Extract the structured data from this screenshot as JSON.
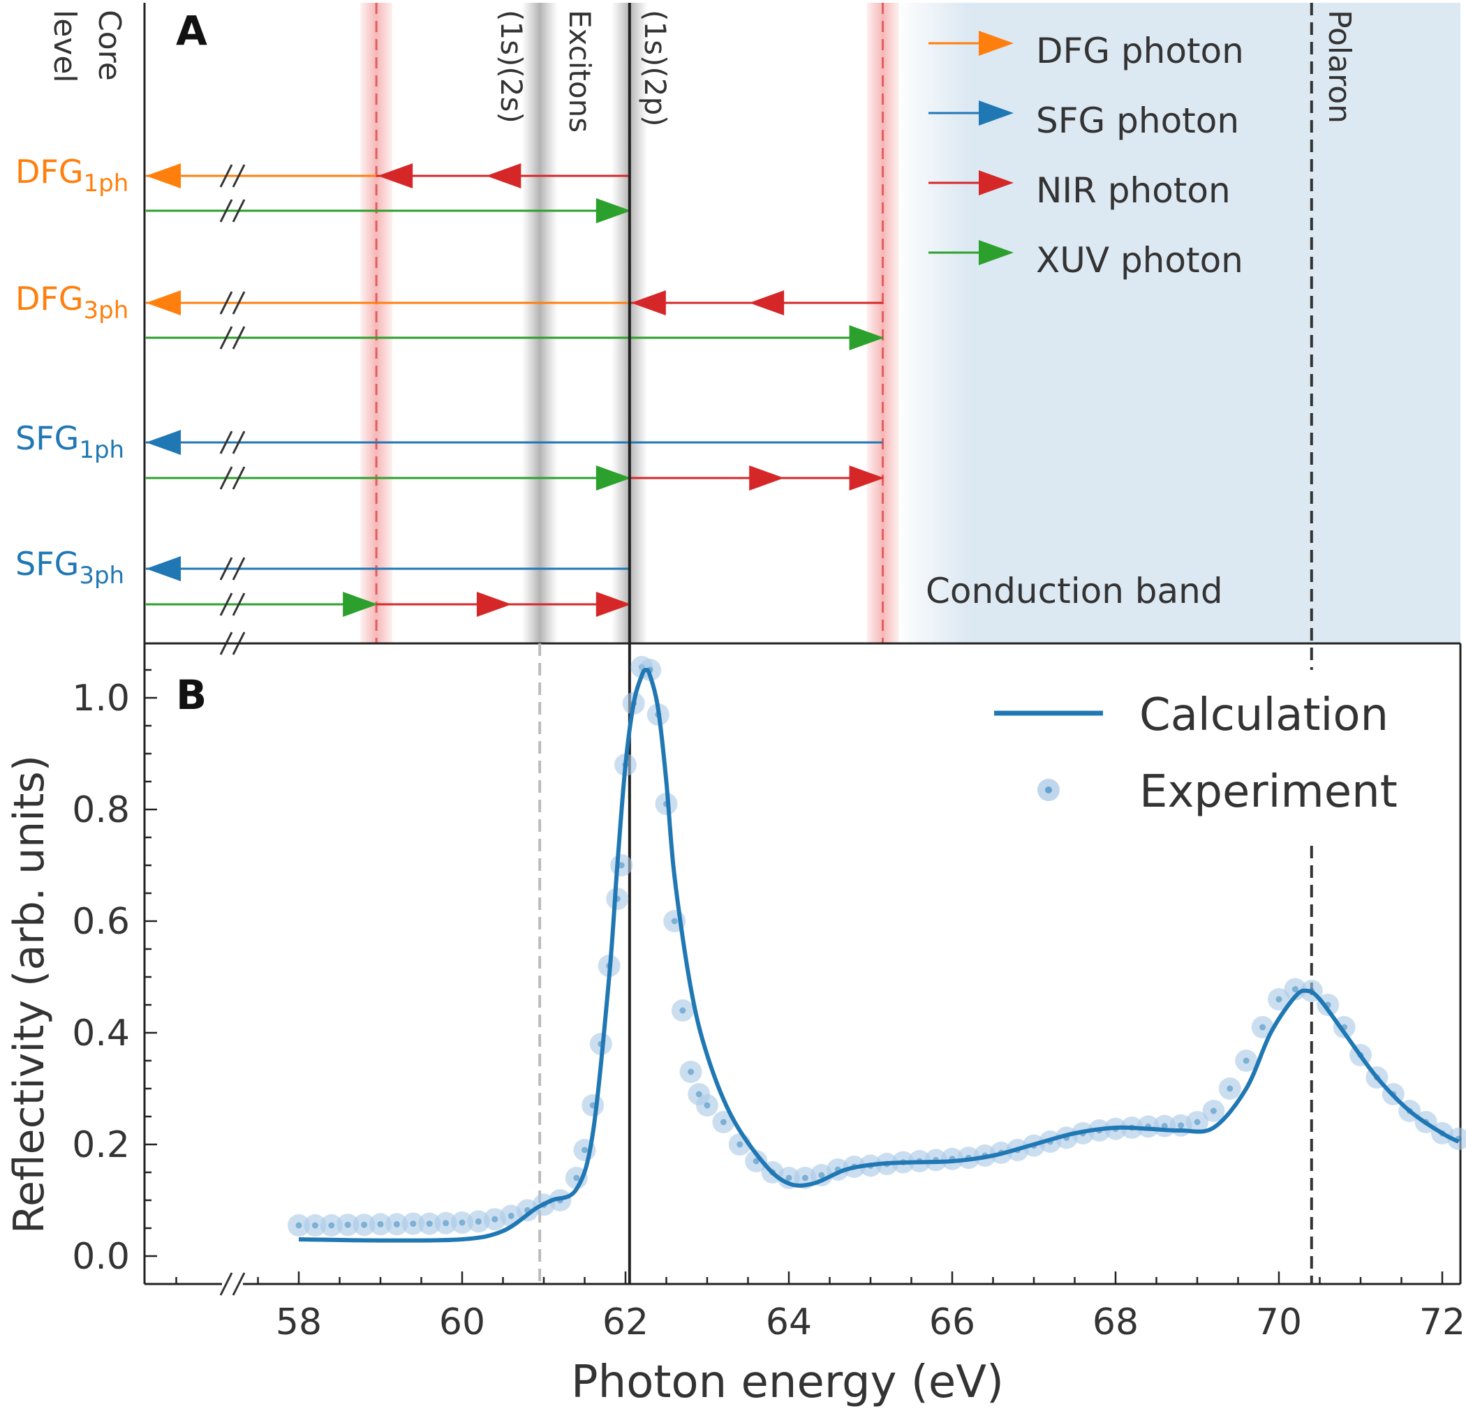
{
  "colors": {
    "orange": "#ff7f0e",
    "blue": "#1f77b4",
    "red": "#d62728",
    "green": "#2ca02c",
    "conduction_band": "#dce8f2",
    "axis": "#222222",
    "exp_marker": "#a9c8e6"
  },
  "panel_a": {
    "label": "A",
    "core_level_line1": "Core",
    "core_level_line2": "level",
    "exciton_1s2s": "(1s)(2s)",
    "exciton_title": "Excitons",
    "exciton_1s2p": "(1s)(2p)",
    "polaron_label": "Polaron",
    "conduction_band_label": "Conduction band",
    "rows": [
      {
        "name": "DFG",
        "sub": "1ph",
        "color": "orange"
      },
      {
        "name": "DFG",
        "sub": "3ph",
        "color": "orange"
      },
      {
        "name": "SFG",
        "sub": "1ph",
        "color": "blue"
      },
      {
        "name": "SFG",
        "sub": "3ph",
        "color": "blue"
      }
    ],
    "legend": [
      {
        "label": "DFG photon",
        "color": "orange"
      },
      {
        "label": "SFG photon",
        "color": "blue"
      },
      {
        "label": "NIR photon",
        "color": "red"
      },
      {
        "label": "XUV photon",
        "color": "green"
      }
    ],
    "energies_eV": {
      "exciton_1s2s": 60.95,
      "exciton_1s2p": 62.05,
      "nir_minus": 58.95,
      "nir_plus": 65.15,
      "polaron": 70.4
    }
  },
  "panel_b": {
    "label": "B",
    "legend": {
      "calculation": "Calculation",
      "experiment": "Experiment"
    }
  },
  "chart_data": {
    "type": "line",
    "title": "",
    "xlabel": "Photon energy (eV)",
    "ylabel": "Reflectivity (arb. units)",
    "xlim": [
      56.1,
      72.2
    ],
    "ylim": [
      -0.05,
      1.1
    ],
    "x_break": 57.1,
    "xticks": [
      58,
      60,
      62,
      64,
      66,
      68,
      70,
      72
    ],
    "xtick_labels": [
      "58",
      "60",
      "62",
      "64",
      "66",
      "68",
      "70",
      "72"
    ],
    "yticks": [
      0.0,
      0.2,
      0.4,
      0.6,
      0.8,
      1.0
    ],
    "ytick_labels": [
      "0.0",
      "0.2",
      "0.4",
      "0.6",
      "0.8",
      "1.0"
    ],
    "vlines": [
      {
        "x": 60.95,
        "style": "dashed-gray"
      },
      {
        "x": 62.05,
        "style": "solid-black"
      },
      {
        "x": 70.4,
        "style": "dashed-black"
      }
    ],
    "series": [
      {
        "name": "Calculation",
        "x": [
          58.0,
          59.0,
          60.0,
          60.5,
          60.9,
          61.1,
          61.4,
          61.6,
          61.8,
          61.9,
          62.0,
          62.1,
          62.2,
          62.25,
          62.3,
          62.4,
          62.5,
          62.6,
          62.8,
          63.0,
          63.3,
          63.7,
          64.0,
          64.3,
          64.7,
          65.1,
          65.5,
          66.0,
          66.5,
          67.0,
          67.5,
          68.0,
          68.4,
          68.8,
          69.2,
          69.6,
          69.9,
          70.2,
          70.35,
          70.5,
          70.8,
          71.2,
          71.6,
          72.0,
          72.2
        ],
        "y": [
          0.03,
          0.028,
          0.03,
          0.045,
          0.085,
          0.1,
          0.12,
          0.22,
          0.5,
          0.7,
          0.88,
          0.99,
          1.04,
          1.05,
          1.04,
          0.98,
          0.85,
          0.68,
          0.48,
          0.36,
          0.25,
          0.165,
          0.13,
          0.13,
          0.155,
          0.165,
          0.168,
          0.17,
          0.18,
          0.2,
          0.22,
          0.23,
          0.228,
          0.225,
          0.23,
          0.3,
          0.4,
          0.465,
          0.475,
          0.46,
          0.4,
          0.32,
          0.26,
          0.22,
          0.205
        ]
      },
      {
        "name": "Experiment",
        "x": [
          58.0,
          58.2,
          58.4,
          58.6,
          58.8,
          59.0,
          59.2,
          59.4,
          59.6,
          59.8,
          60.0,
          60.2,
          60.4,
          60.6,
          60.8,
          61.0,
          61.2,
          61.4,
          61.5,
          61.6,
          61.7,
          61.8,
          61.9,
          61.95,
          62.0,
          62.1,
          62.2,
          62.3,
          62.4,
          62.5,
          62.6,
          62.7,
          62.8,
          62.9,
          63.0,
          63.2,
          63.4,
          63.6,
          63.8,
          64.0,
          64.2,
          64.4,
          64.6,
          64.8,
          65.0,
          65.2,
          65.4,
          65.6,
          65.8,
          66.0,
          66.2,
          66.4,
          66.6,
          66.8,
          67.0,
          67.2,
          67.4,
          67.6,
          67.8,
          68.0,
          68.2,
          68.4,
          68.6,
          68.8,
          69.0,
          69.2,
          69.4,
          69.6,
          69.8,
          70.0,
          70.2,
          70.4,
          70.6,
          70.8,
          71.0,
          71.2,
          71.4,
          71.6,
          71.8,
          72.0,
          72.2
        ],
        "y": [
          0.055,
          0.055,
          0.055,
          0.056,
          0.056,
          0.057,
          0.057,
          0.058,
          0.058,
          0.059,
          0.06,
          0.062,
          0.066,
          0.072,
          0.082,
          0.092,
          0.1,
          0.14,
          0.19,
          0.27,
          0.38,
          0.52,
          0.64,
          0.7,
          0.88,
          0.99,
          1.055,
          1.05,
          0.97,
          0.81,
          0.6,
          0.44,
          0.33,
          0.29,
          0.27,
          0.24,
          0.2,
          0.17,
          0.15,
          0.14,
          0.14,
          0.145,
          0.155,
          0.16,
          0.162,
          0.165,
          0.168,
          0.17,
          0.172,
          0.174,
          0.176,
          0.18,
          0.185,
          0.19,
          0.198,
          0.205,
          0.212,
          0.22,
          0.225,
          0.228,
          0.23,
          0.232,
          0.233,
          0.234,
          0.24,
          0.26,
          0.3,
          0.35,
          0.41,
          0.46,
          0.478,
          0.475,
          0.45,
          0.41,
          0.36,
          0.32,
          0.29,
          0.26,
          0.24,
          0.22,
          0.21
        ]
      }
    ]
  }
}
